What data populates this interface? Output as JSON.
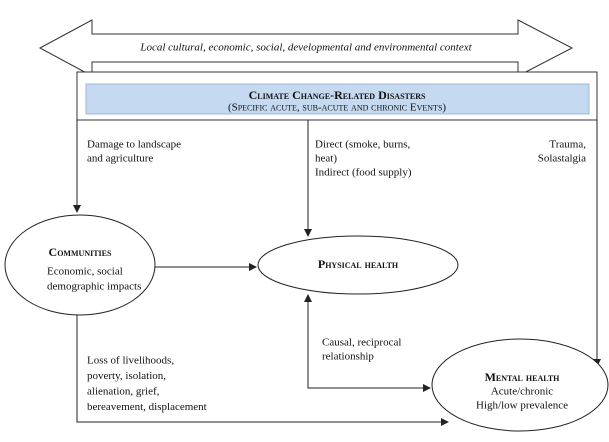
{
  "context": "Local cultural, economic, social, developmental and environmental context",
  "header": {
    "title": "Climate Change-Related Disasters",
    "subtitle": "(Specific acute, sub-acute and chronic Events)"
  },
  "pathways": {
    "landscape": [
      "Damage to landscape",
      "and agriculture"
    ],
    "direct": [
      "Direct (smoke, burns,",
      "heat)",
      "Indirect (food supply)"
    ],
    "trauma": [
      "Trauma,",
      "Solastalgia"
    ],
    "reciprocal": [
      "Causal, reciprocal",
      "relationship"
    ],
    "loss": [
      "Loss of livelihoods,",
      "poverty, isolation,",
      "alienation, grief,",
      "bereavement, displacement"
    ]
  },
  "nodes": [
    {
      "label": "Communities",
      "details": [
        "Economic, social",
        "demographic impacts"
      ]
    },
    {
      "label": "Physical health",
      "details": []
    },
    {
      "label": "Mental health",
      "details": [
        "Acute/chronic",
        "High/low prevalence"
      ]
    }
  ]
}
